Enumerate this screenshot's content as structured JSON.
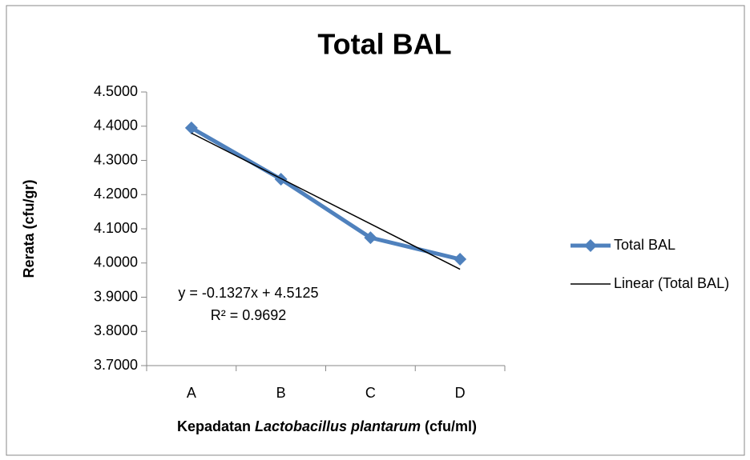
{
  "chart_data": {
    "type": "line",
    "title": "Total BAL",
    "y_label": "Rerata (cfu/gr)",
    "x_label": [
      "Kepadatan ",
      "Lactobacillus plantarum",
      " (cfu/ml)"
    ],
    "categories": [
      "A",
      "B",
      "C",
      "D"
    ],
    "series": [
      {
        "name": "Total BAL",
        "color": "#4f81bd",
        "values": [
          4.395,
          4.245,
          4.074,
          4.011
        ]
      },
      {
        "name": "Linear (Total BAL)",
        "color": "#000000",
        "values": [
          4.3798,
          4.2471,
          4.1144,
          3.9817
        ]
      }
    ],
    "annotations": [
      "y = -0.1327x + 4.5125",
      "R² = 0.9692"
    ],
    "ylim": [
      3.7,
      4.5
    ],
    "yticks": [
      {
        "value": 3.7,
        "label": "3.7000"
      },
      {
        "value": 3.8,
        "label": "3.8000"
      },
      {
        "value": 3.9,
        "label": "3.9000"
      },
      {
        "value": 4.0,
        "label": "4.0000"
      },
      {
        "value": 4.1,
        "label": "4.1000"
      },
      {
        "value": 4.2,
        "label": "4.2000"
      },
      {
        "value": 4.3,
        "label": "4.3000"
      },
      {
        "value": 4.4,
        "label": "4.4000"
      },
      {
        "value": 4.5,
        "label": "4.5000"
      }
    ],
    "grid": false,
    "legend": "right"
  }
}
